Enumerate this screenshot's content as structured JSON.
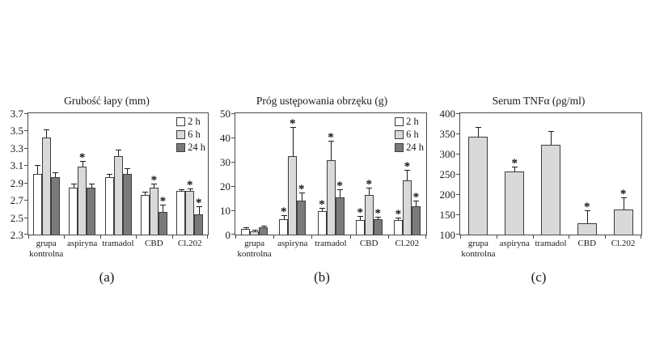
{
  "figure": {
    "background": "#ffffff",
    "series_colors": {
      "h2": "#ffffff",
      "h6": "#d9d9d9",
      "h24": "#7a7a7a"
    },
    "significance_note": "*"
  },
  "chart_data": [
    {
      "panel_label": "(a)",
      "type": "bar",
      "title": "Grubość łapy (mm)",
      "categories": [
        "grupa kontrolna",
        "aspiryna",
        "tramadol",
        "CBD",
        "Cl.202"
      ],
      "ylim": [
        2.3,
        3.7
      ],
      "yticks": [
        "2.3",
        "2.5",
        "2.7",
        "2.9",
        "3.1",
        "3.3",
        "3.5",
        "3.7"
      ],
      "legend": true,
      "legend_position": "top-right",
      "grid": false,
      "significance_marker": "*",
      "series": [
        {
          "name": "2 h",
          "color": "#ffffff",
          "values": [
            3.0,
            2.84,
            2.96,
            2.76,
            2.8
          ],
          "errors": [
            0.09,
            0.04,
            0.03,
            0.03,
            0.01
          ],
          "significant": [
            false,
            false,
            false,
            false,
            false
          ]
        },
        {
          "name": "6 h",
          "color": "#d9d9d9",
          "values": [
            3.42,
            3.08,
            3.21,
            2.84,
            2.8
          ],
          "errors": [
            0.08,
            0.06,
            0.06,
            0.04,
            0.02
          ],
          "significant": [
            false,
            true,
            false,
            true,
            true
          ]
        },
        {
          "name": "24 h",
          "color": "#7a7a7a",
          "values": [
            2.96,
            2.84,
            3.0,
            2.56,
            2.53
          ],
          "errors": [
            0.05,
            0.04,
            0.06,
            0.08,
            0.09
          ],
          "significant": [
            false,
            false,
            false,
            true,
            true
          ]
        }
      ]
    },
    {
      "panel_label": "(b)",
      "type": "bar",
      "title": "Próg ustępowania obrzęku (g)",
      "categories": [
        "grupa kontrolna",
        "aspiryna",
        "tramadol",
        "CBD",
        "Cl.202"
      ],
      "ylim": [
        0,
        50
      ],
      "yticks": [
        "0",
        "10",
        "20",
        "30",
        "40",
        "50"
      ],
      "legend": true,
      "legend_position": "top-right",
      "grid": false,
      "significance_marker": "*",
      "series": [
        {
          "name": "2 h",
          "color": "#ffffff",
          "values": [
            2.2,
            6.4,
            9.8,
            6.0,
            6.0
          ],
          "errors": [
            0.5,
            1.2,
            0.8,
            1.2,
            0.8
          ],
          "significant": [
            false,
            true,
            true,
            true,
            true
          ]
        },
        {
          "name": "6 h",
          "color": "#d9d9d9",
          "values": [
            1.5,
            32.5,
            30.8,
            16.3,
            22.4
          ],
          "errors": [
            0.3,
            11.5,
            7.5,
            2.6,
            3.8
          ],
          "significant": [
            false,
            true,
            true,
            true,
            true
          ]
        },
        {
          "name": "24 h",
          "color": "#7a7a7a",
          "values": [
            3.1,
            13.9,
            15.3,
            6.4,
            11.8
          ],
          "errors": [
            0.4,
            3.1,
            2.9,
            0.7,
            1.8
          ],
          "significant": [
            false,
            true,
            true,
            true,
            true
          ]
        }
      ]
    },
    {
      "panel_label": "(c)",
      "type": "bar",
      "title": "Serum TNFα (ρg/ml)",
      "categories": [
        "grupa kontrolna",
        "aspiryna",
        "tramadol",
        "CBD",
        "Cl.202"
      ],
      "ylim": [
        100,
        400
      ],
      "yticks": [
        "100",
        "150",
        "200",
        "250",
        "300",
        "350",
        "400"
      ],
      "legend": false,
      "grid": false,
      "significance_marker": "*",
      "series": [
        {
          "name": "",
          "color": "#d9d9d9",
          "values": [
            343,
            257,
            322,
            128,
            162
          ],
          "errors": [
            22,
            9,
            33,
            30,
            28
          ],
          "significant": [
            false,
            true,
            false,
            true,
            true
          ]
        }
      ]
    }
  ]
}
